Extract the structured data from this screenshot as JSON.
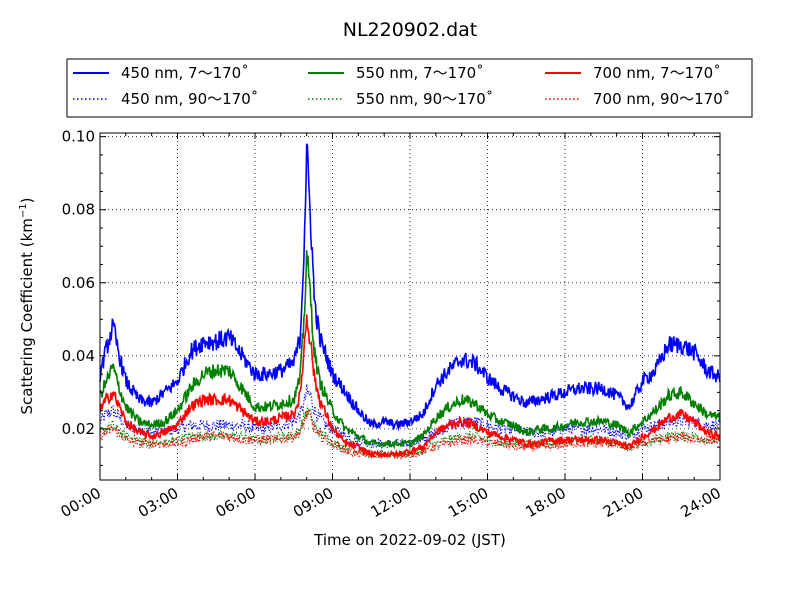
{
  "chart_data": {
    "type": "line",
    "title": "NL220902.dat",
    "xlabel": "Time on 2022-09-02 (JST)",
    "ylabel_main": "Scattering Coefficient (km",
    "ylabel_sup": "−1",
    "ylabel_tail": ")",
    "xlim": [
      0,
      24
    ],
    "ylim": [
      0.006,
      0.101
    ],
    "grid": true,
    "legend_position": "top, above plot, 3 columns",
    "x_ticks": [
      0,
      3,
      6,
      9,
      12,
      15,
      18,
      21,
      24
    ],
    "x_tick_labels": [
      "00:00",
      "03:00",
      "06:00",
      "09:00",
      "12:00",
      "15:00",
      "18:00",
      "21:00",
      "24:00"
    ],
    "y_ticks": [
      0.02,
      0.04,
      0.06,
      0.08,
      0.1
    ],
    "y_tick_labels": [
      "0.02",
      "0.04",
      "0.06",
      "0.08",
      "0.10"
    ],
    "x_hours": [
      0,
      0.25,
      0.5,
      0.75,
      1,
      1.5,
      2,
      2.5,
      3,
      3.5,
      4,
      4.5,
      5,
      5.5,
      6,
      6.5,
      7,
      7.5,
      7.75,
      7.9,
      8,
      8.15,
      8.3,
      8.5,
      8.75,
      9,
      9.5,
      10,
      10.5,
      11,
      11.5,
      12,
      12.5,
      13,
      13.5,
      14,
      14.5,
      15,
      15.5,
      16,
      16.5,
      17,
      17.5,
      18,
      18.5,
      19,
      19.5,
      20,
      20.5,
      21,
      21.5,
      22,
      22.5,
      23,
      23.5,
      24
    ],
    "series": [
      {
        "name": "450 nm, 7～170˚",
        "color": "#0000ff",
        "style": "solid",
        "values": [
          0.035,
          0.042,
          0.048,
          0.04,
          0.033,
          0.028,
          0.027,
          0.03,
          0.033,
          0.041,
          0.044,
          0.044,
          0.045,
          0.04,
          0.035,
          0.035,
          0.036,
          0.038,
          0.045,
          0.07,
          0.096,
          0.078,
          0.055,
          0.045,
          0.04,
          0.035,
          0.03,
          0.025,
          0.021,
          0.022,
          0.021,
          0.022,
          0.024,
          0.032,
          0.036,
          0.039,
          0.038,
          0.034,
          0.031,
          0.029,
          0.027,
          0.028,
          0.029,
          0.03,
          0.031,
          0.031,
          0.031,
          0.029,
          0.026,
          0.033,
          0.036,
          0.043,
          0.043,
          0.041,
          0.036,
          0.034
        ]
      },
      {
        "name": "450 nm, 90～170˚",
        "color": "#0000ff",
        "style": "dotted",
        "values": [
          0.022,
          0.024,
          0.025,
          0.023,
          0.021,
          0.02,
          0.019,
          0.019,
          0.02,
          0.021,
          0.021,
          0.021,
          0.021,
          0.021,
          0.02,
          0.02,
          0.021,
          0.022,
          0.024,
          0.027,
          0.03,
          0.029,
          0.025,
          0.023,
          0.021,
          0.02,
          0.018,
          0.017,
          0.016,
          0.016,
          0.016,
          0.016,
          0.017,
          0.019,
          0.021,
          0.022,
          0.022,
          0.021,
          0.02,
          0.02,
          0.019,
          0.019,
          0.019,
          0.02,
          0.02,
          0.02,
          0.02,
          0.019,
          0.018,
          0.02,
          0.021,
          0.022,
          0.022,
          0.022,
          0.021,
          0.021
        ]
      },
      {
        "name": "550 nm, 7～170˚",
        "color": "#008000",
        "style": "solid",
        "values": [
          0.029,
          0.033,
          0.037,
          0.031,
          0.026,
          0.022,
          0.021,
          0.022,
          0.025,
          0.031,
          0.035,
          0.036,
          0.036,
          0.031,
          0.026,
          0.026,
          0.027,
          0.028,
          0.034,
          0.05,
          0.068,
          0.056,
          0.041,
          0.033,
          0.029,
          0.025,
          0.02,
          0.018,
          0.016,
          0.016,
          0.016,
          0.016,
          0.018,
          0.023,
          0.026,
          0.028,
          0.027,
          0.024,
          0.022,
          0.021,
          0.019,
          0.02,
          0.02,
          0.021,
          0.022,
          0.022,
          0.022,
          0.021,
          0.019,
          0.022,
          0.025,
          0.029,
          0.03,
          0.027,
          0.024,
          0.023
        ]
      },
      {
        "name": "550 nm, 90～170˚",
        "color": "#008000",
        "style": "dotted",
        "values": [
          0.019,
          0.02,
          0.021,
          0.019,
          0.018,
          0.017,
          0.016,
          0.016,
          0.017,
          0.018,
          0.018,
          0.018,
          0.018,
          0.018,
          0.017,
          0.017,
          0.018,
          0.018,
          0.02,
          0.023,
          0.025,
          0.024,
          0.021,
          0.019,
          0.018,
          0.016,
          0.015,
          0.014,
          0.013,
          0.013,
          0.013,
          0.013,
          0.014,
          0.016,
          0.017,
          0.018,
          0.018,
          0.017,
          0.016,
          0.016,
          0.016,
          0.016,
          0.016,
          0.016,
          0.017,
          0.017,
          0.017,
          0.016,
          0.015,
          0.016,
          0.017,
          0.018,
          0.018,
          0.018,
          0.017,
          0.017
        ]
      },
      {
        "name": "700 nm, 7～170˚",
        "color": "#ff0000",
        "style": "solid",
        "values": [
          0.025,
          0.028,
          0.03,
          0.026,
          0.022,
          0.019,
          0.018,
          0.019,
          0.021,
          0.026,
          0.028,
          0.028,
          0.028,
          0.025,
          0.022,
          0.022,
          0.023,
          0.024,
          0.029,
          0.042,
          0.051,
          0.044,
          0.034,
          0.028,
          0.024,
          0.02,
          0.016,
          0.015,
          0.013,
          0.013,
          0.013,
          0.014,
          0.015,
          0.019,
          0.021,
          0.022,
          0.021,
          0.019,
          0.018,
          0.017,
          0.016,
          0.016,
          0.017,
          0.017,
          0.017,
          0.017,
          0.017,
          0.016,
          0.015,
          0.018,
          0.02,
          0.023,
          0.024,
          0.022,
          0.019,
          0.018
        ]
      },
      {
        "name": "700 nm, 90～170˚",
        "color": "#ff0000",
        "style": "dotted",
        "values": [
          0.018,
          0.019,
          0.02,
          0.019,
          0.017,
          0.016,
          0.016,
          0.016,
          0.016,
          0.017,
          0.018,
          0.018,
          0.018,
          0.017,
          0.017,
          0.017,
          0.017,
          0.018,
          0.019,
          0.022,
          0.024,
          0.023,
          0.02,
          0.018,
          0.017,
          0.016,
          0.014,
          0.013,
          0.013,
          0.013,
          0.013,
          0.013,
          0.014,
          0.015,
          0.016,
          0.017,
          0.017,
          0.016,
          0.016,
          0.015,
          0.015,
          0.015,
          0.015,
          0.016,
          0.016,
          0.016,
          0.016,
          0.016,
          0.015,
          0.016,
          0.017,
          0.017,
          0.018,
          0.017,
          0.017,
          0.017
        ]
      }
    ]
  }
}
